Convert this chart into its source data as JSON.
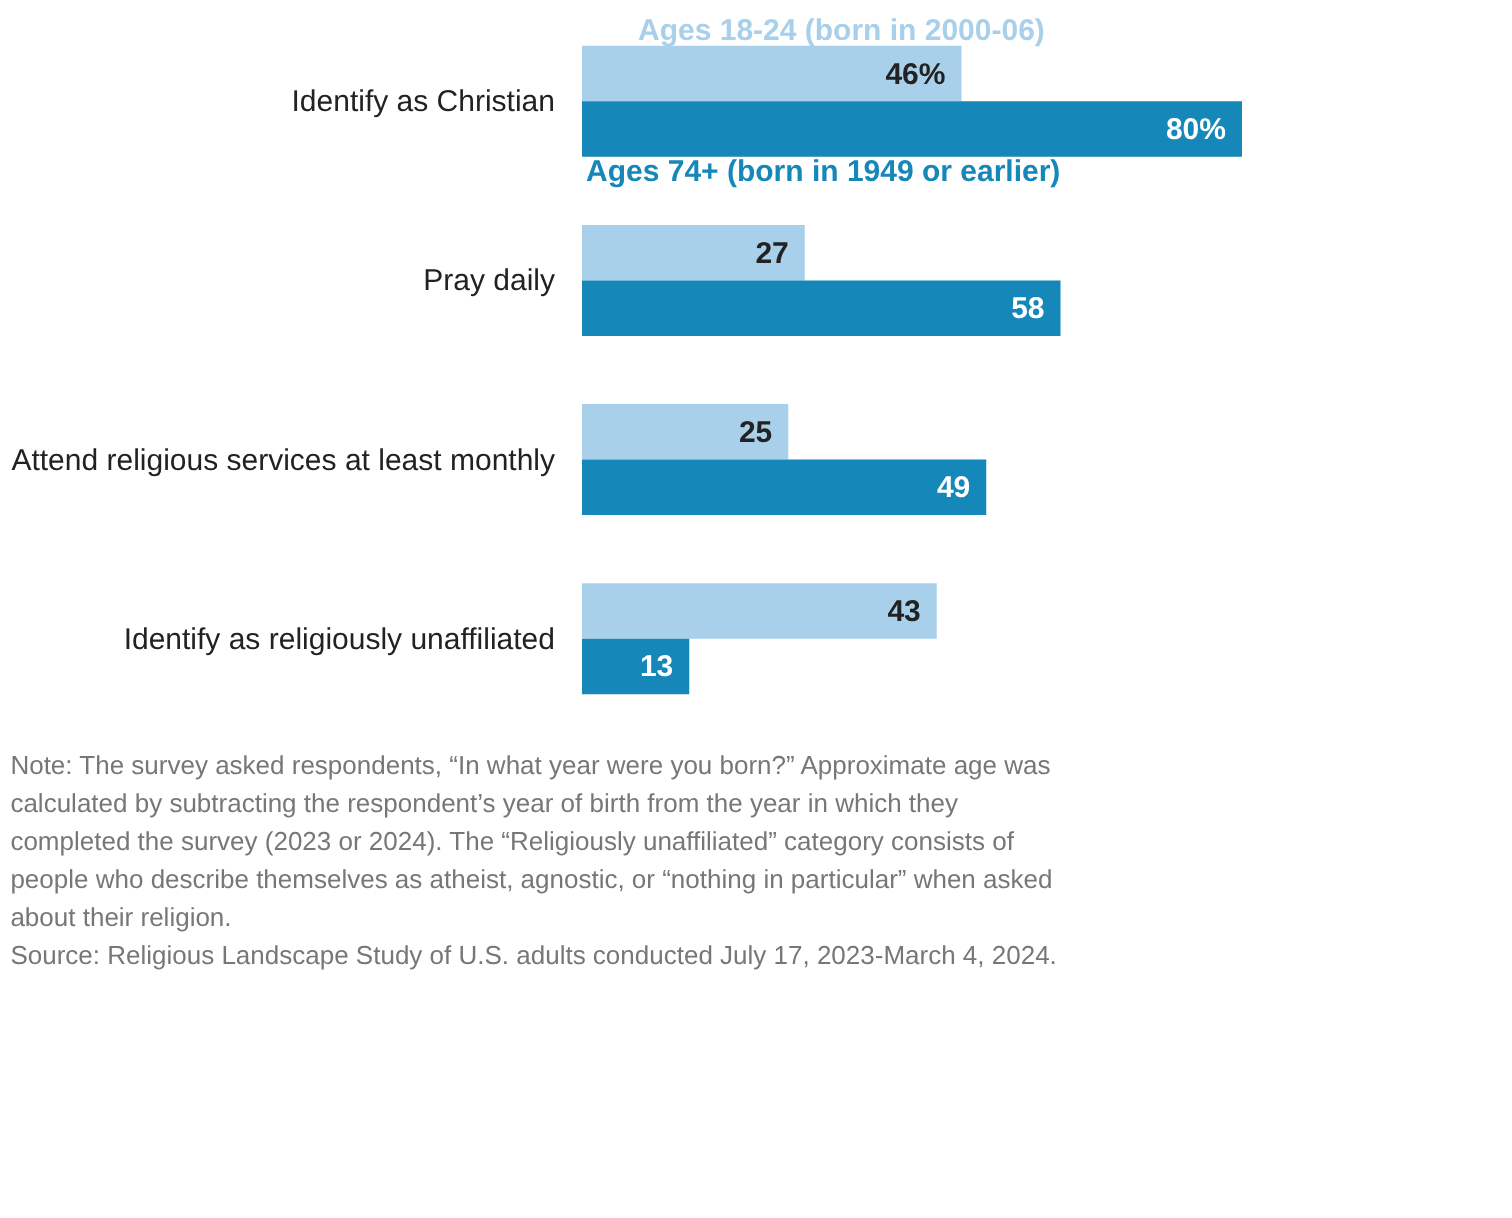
{
  "chart_data": {
    "type": "bar",
    "orientation": "horizontal",
    "categories": [
      "Identify as Christian",
      "Pray daily",
      "Attend religious services at least monthly",
      "Identify as religiously unaffiliated"
    ],
    "series": [
      {
        "name": "Ages 18-24 (born in 2000-06)",
        "color": "#a9d0ea",
        "values": [
          46,
          27,
          25,
          43
        ],
        "value_labels": [
          "46%",
          "27",
          "25",
          "43"
        ]
      },
      {
        "name": "Ages 74+ (born in 1949 or earlier)",
        "color": "#1587b8",
        "values": [
          80,
          58,
          49,
          13
        ],
        "value_labels": [
          "80%",
          "58",
          "49",
          "13"
        ]
      }
    ],
    "legend": false,
    "grid": false,
    "tick_labels": "y",
    "annotations": [
      "Note: The survey asked respondents, “In what year were you born?” Approximate age was calculated by subtracting the respondent’s year of birth from the year in which they completed the survey (2023 or 2024). The “Religiously unaffiliated” category consists of people who describe themselves as atheist, agnostic, or “nothing in particular” when asked about their religion.",
      "Source: Religious Landscape Study of U.S. adults conducted July 17, 2023-March 4, 2024."
    ]
  }
}
